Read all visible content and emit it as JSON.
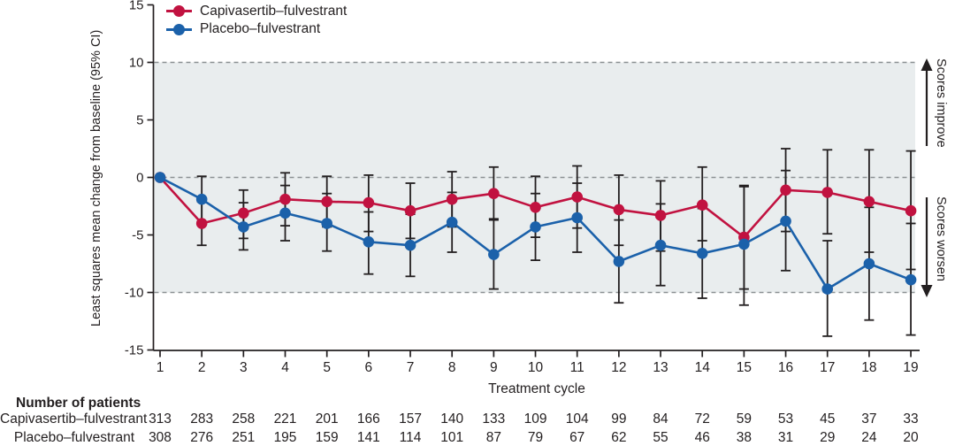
{
  "chart_data": {
    "type": "line",
    "xlabel": "Treatment cycle",
    "ylabel": "Least squares mean change from baseline (95% CI)",
    "x": [
      1,
      2,
      3,
      4,
      5,
      6,
      7,
      8,
      9,
      10,
      11,
      12,
      13,
      14,
      15,
      16,
      17,
      18,
      19
    ],
    "ylim": [
      -15,
      15
    ],
    "yticks": [
      15,
      10,
      5,
      0,
      -5,
      -10,
      -15
    ],
    "shaded_band": {
      "from": -10,
      "to": 10,
      "color": "#e9edee"
    },
    "dashed_reference_lines": [
      10,
      0,
      -10
    ],
    "dashed_line_color": "#8c9193",
    "axis_color": "#231f20",
    "error_bar_color": "#231f20",
    "legend_position": "top-left",
    "series": [
      {
        "name": "Capivasertib–fulvestrant",
        "color": "#c11240",
        "values": [
          0,
          -4.0,
          -3.1,
          -1.9,
          -2.1,
          -2.2,
          -2.9,
          -1.9,
          -1.4,
          -2.6,
          -1.7,
          -2.8,
          -3.3,
          -2.4,
          -5.2,
          -1.1,
          -1.3,
          -2.1,
          -2.9
        ],
        "ci_low": [
          0,
          -5.9,
          -5.3,
          -4.2,
          -4.3,
          -4.7,
          -5.3,
          -4.3,
          -3.7,
          -5.2,
          -4.4,
          -5.9,
          -6.4,
          -5.5,
          -9.7,
          -4.7,
          -4.9,
          -6.5,
          -8.0
        ],
        "ci_high": [
          0,
          -2.1,
          -1.1,
          0.4,
          0.1,
          0.2,
          -0.5,
          0.5,
          0.9,
          0.1,
          1.0,
          0.2,
          -0.3,
          0.9,
          -0.7,
          2.5,
          2.4,
          2.4,
          2.3
        ]
      },
      {
        "name": "Placebo–fulvestrant",
        "color": "#1b61aa",
        "values": [
          0,
          -1.9,
          -4.3,
          -3.1,
          -4.0,
          -5.6,
          -5.9,
          -3.9,
          -6.7,
          -4.3,
          -3.5,
          -7.3,
          -5.9,
          -6.6,
          -5.8,
          -3.8,
          -9.7,
          -7.5,
          -8.9
        ],
        "ci_low": [
          0,
          -4.1,
          -6.3,
          -5.5,
          -6.4,
          -8.4,
          -8.6,
          -6.5,
          -9.7,
          -7.2,
          -6.5,
          -10.9,
          -9.4,
          -10.5,
          -11.1,
          -8.1,
          -13.8,
          -12.4,
          -13.7
        ],
        "ci_high": [
          0,
          0.1,
          -2.2,
          -0.7,
          -1.4,
          -3.0,
          -3.2,
          -1.3,
          -3.6,
          -1.4,
          -0.5,
          -3.7,
          -2.3,
          -2.7,
          -0.8,
          0.6,
          -5.5,
          -2.6,
          -4.0
        ]
      }
    ],
    "annotations": [
      {
        "text": "Scores improve",
        "direction": "up"
      },
      {
        "text": "Scores worsen",
        "direction": "down"
      }
    ]
  },
  "patients_table": {
    "header": "Number of patients",
    "rows": [
      {
        "label": "Capivasertib–fulvestrant",
        "values": [
          313,
          283,
          258,
          221,
          201,
          166,
          157,
          140,
          133,
          109,
          104,
          99,
          84,
          72,
          59,
          53,
          45,
          37,
          33
        ]
      },
      {
        "label": "Placebo–fulvestrant",
        "values": [
          308,
          276,
          251,
          195,
          159,
          141,
          114,
          101,
          87,
          79,
          67,
          62,
          55,
          46,
          38,
          31,
          29,
          24,
          20
        ]
      }
    ]
  }
}
